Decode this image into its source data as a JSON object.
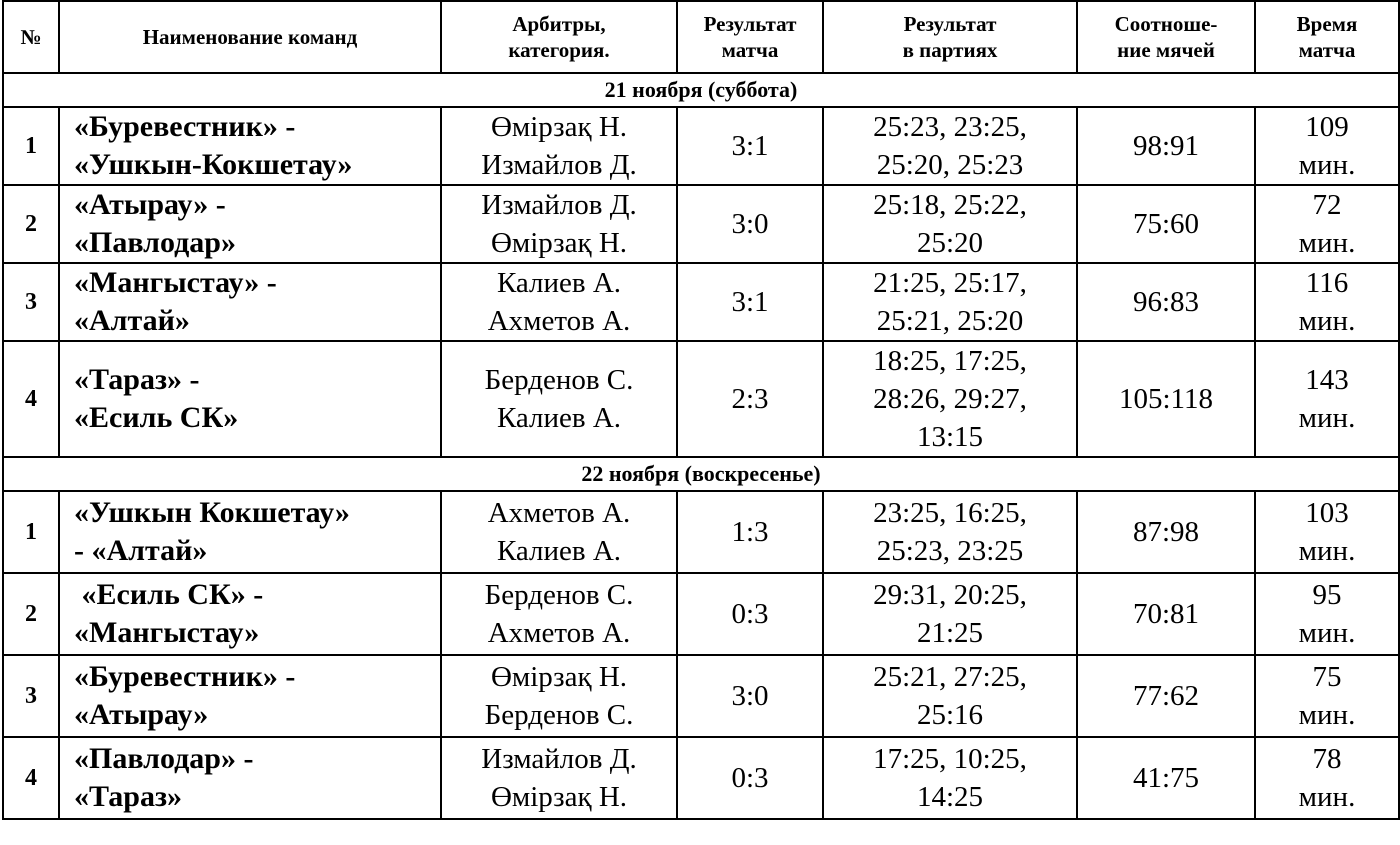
{
  "header": {
    "num": "№",
    "teams": "Наименование команд",
    "referees": "Арбитры,\nкатегория.",
    "result": "Результат\nматча",
    "sets": "Результат\nв партиях",
    "ratio": "Соотноше-\nние мячей",
    "time": "Время\nматча"
  },
  "days": [
    {
      "title": "21 ноября (суббота)",
      "matches": [
        {
          "num": "1",
          "teams": "«Буревестник» -\n«Ушкын-Кокшетау»",
          "referees": "Өмірзақ Н.\nИзмайлов Д.",
          "result": "3:1",
          "sets": "25:23, 23:25,\n25:20, 25:23",
          "ratio": "98:91",
          "time": "109\nмин."
        },
        {
          "num": "2",
          "teams": "«Атырау» -\n«Павлодар»",
          "referees": "Измайлов Д.\nӨмірзақ Н.",
          "result": "3:0",
          "sets": "25:18, 25:22,\n25:20",
          "ratio": "75:60",
          "time": "72\nмин."
        },
        {
          "num": "3",
          "teams": "«Мангыстау» -\n«Алтай»",
          "referees": "Калиев А.\nАхметов А.",
          "result": "3:1",
          "sets": "21:25, 25:17,\n25:21, 25:20",
          "ratio": "96:83",
          "time": "116\nмин."
        },
        {
          "num": "4",
          "teams": "«Тараз» -\n«Есиль СК»",
          "referees": "Берденов С.\nКалиев А.",
          "result": "2:3",
          "sets": "18:25, 17:25,\n28:26, 29:27,\n13:15",
          "ratio": "105:118",
          "time": "143\nмин."
        }
      ]
    },
    {
      "title": "22 ноября (воскресенье)",
      "matches": [
        {
          "num": "1",
          "teams": "«Ушкын Кокшетау»\n- «Алтай»",
          "referees": "Ахметов А.\nКалиев А.",
          "result": "1:3",
          "sets": "23:25, 16:25,\n25:23, 23:25",
          "ratio": "87:98",
          "time": "103\nмин."
        },
        {
          "num": "2",
          "teams": " «Есиль СК» -\n«Мангыстау»",
          "referees": "Берденов С.\nАхметов А.",
          "result": "0:3",
          "sets": "29:31, 20:25,\n21:25",
          "ratio": "70:81",
          "time": "95\nмин."
        },
        {
          "num": "3",
          "teams": "«Буревестник» -\n«Атырау»",
          "referees": "Өмірзақ Н.\nБерденов С.",
          "result": "3:0",
          "sets": "25:21, 27:25,\n25:16",
          "ratio": "77:62",
          "time": "75\nмин."
        },
        {
          "num": "4",
          "teams": "«Павлодар» -\n«Тараз»",
          "referees": "Измайлов Д.\nӨмірзақ Н.",
          "result": "0:3",
          "sets": "17:25, 10:25,\n14:25",
          "ratio": "41:75",
          "time": "78\nмин."
        }
      ]
    }
  ]
}
